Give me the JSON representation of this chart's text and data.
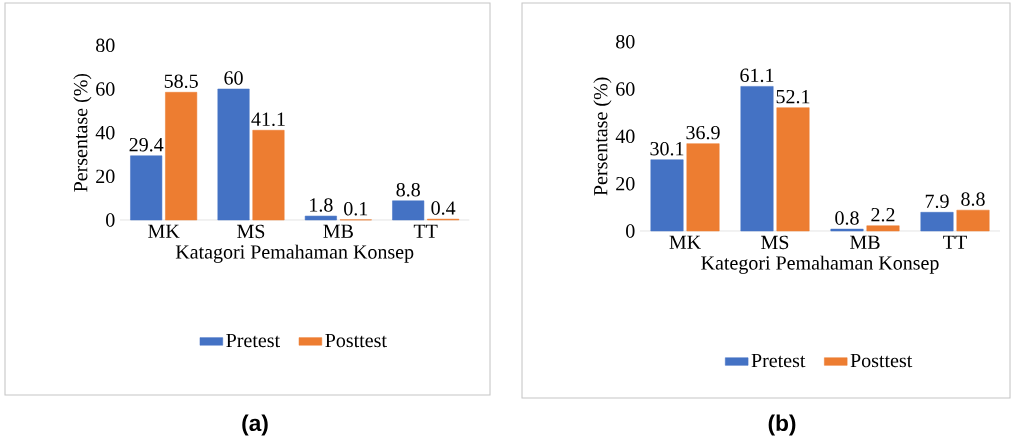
{
  "chart_data": [
    {
      "type": "bar",
      "title": "(a)",
      "xlabel": "Katagori Pemahaman  Konsep",
      "ylabel": "Persentase (%)",
      "categories": [
        "MK",
        "MS",
        "MB",
        "TT"
      ],
      "ylim": [
        0,
        80
      ],
      "yticks": [
        0,
        20,
        40,
        60,
        80
      ],
      "data_labels": true,
      "legend": "bottom",
      "series": [
        {
          "name": "Pretest",
          "color": "#4472c4",
          "values": [
            29.4,
            60,
            1.8,
            8.8
          ]
        },
        {
          "name": "Posttest",
          "color": "#ed7d31",
          "values": [
            58.5,
            41.1,
            0.1,
            0.4
          ]
        }
      ]
    },
    {
      "type": "bar",
      "title": "(b)",
      "xlabel": "Kategori Pemahaman  Konsep",
      "ylabel": "Persentase (%)",
      "categories": [
        "MK",
        "MS",
        "MB",
        "TT"
      ],
      "ylim": [
        0,
        80
      ],
      "yticks": [
        0,
        20,
        40,
        60,
        80
      ],
      "data_labels": true,
      "legend": "bottom",
      "series": [
        {
          "name": "Pretest",
          "color": "#4472c4",
          "values": [
            30.1,
            61.1,
            0.8,
            7.9
          ]
        },
        {
          "name": "Posttest",
          "color": "#ed7d31",
          "values": [
            36.9,
            52.1,
            2.2,
            8.8
          ]
        }
      ]
    }
  ]
}
